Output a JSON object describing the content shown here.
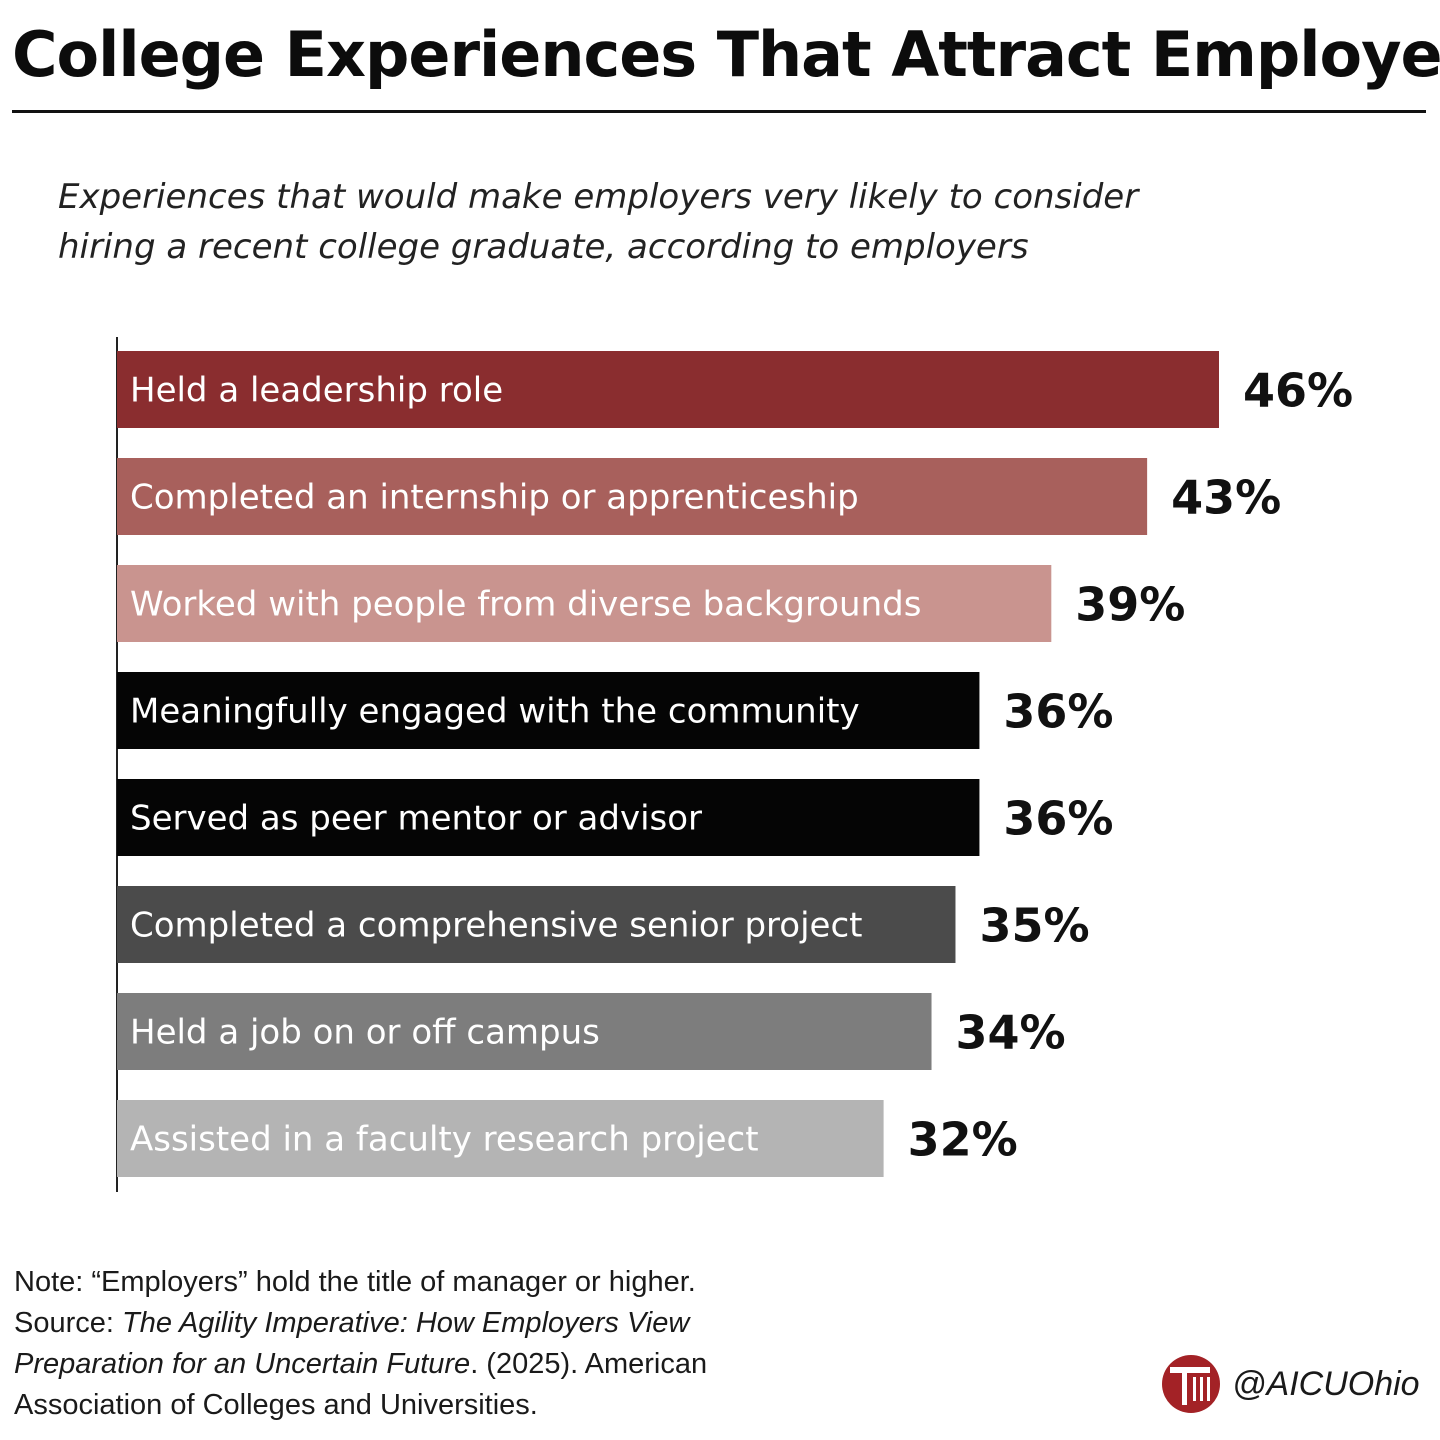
{
  "title": "College Experiences That Attract Employers",
  "subtitle": "Experiences that would make employers very likely to consider hiring a recent college graduate, according to employers",
  "chart_data": {
    "type": "bar",
    "orientation": "horizontal",
    "categories": [
      "Held a leadership role",
      "Completed an internship or apprenticeship",
      "Worked with people from diverse backgrounds",
      "Meaningfully engaged with the community",
      "Served as peer mentor or advisor",
      "Completed a comprehensive senior project",
      "Held a job on or off campus",
      "Assisted in a faculty research project"
    ],
    "values": [
      46,
      43,
      39,
      36,
      36,
      35,
      34,
      32
    ],
    "value_labels": [
      "46%",
      "43%",
      "39%",
      "36%",
      "36%",
      "35%",
      "34%",
      "32%"
    ],
    "unit": "%",
    "bar_colors": [
      "#8a2d2f",
      "#a8605c",
      "#c9948f",
      "#050505",
      "#050505",
      "#4b4b4b",
      "#7d7d7d",
      "#b4b4b4"
    ],
    "label_colors": [
      "#ffffff",
      "#ffffff",
      "#ffffff",
      "#ffffff",
      "#ffffff",
      "#ffffff",
      "#ffffff",
      "#ffffff"
    ],
    "xlim": [
      0,
      46
    ],
    "grid": false,
    "legend": "none"
  },
  "note": {
    "prefix": "Note: ",
    "text": "“Employers” hold the title of manager or higher.",
    "source_prefix": "Source: ",
    "source_italic": "The Agility Imperative: How Employers View Preparation for an Uncertain Future",
    "source_rest": ". (2025). American Association of Colleges and Universities."
  },
  "brand": {
    "handle": "@AICUOhio",
    "logo_color": "#a32226"
  }
}
